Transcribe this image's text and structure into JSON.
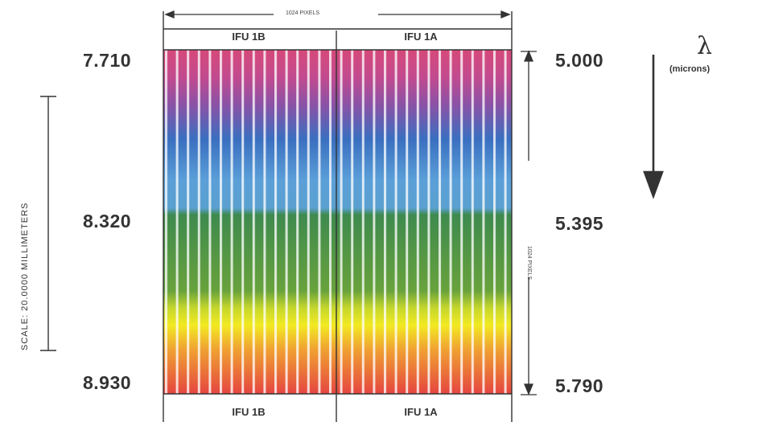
{
  "top_axis": {
    "label": "1024 PIXELS"
  },
  "side_axis": {
    "label": "1024 PIXELS"
  },
  "slices_top": [
    "IFU 1B",
    "IFU 1A"
  ],
  "slices_bottom": [
    "IFU 1B",
    "IFU 1A"
  ],
  "left_values": {
    "top": "7.710",
    "middle": "8.320",
    "bottom": "8.930"
  },
  "right_values": {
    "top": "5.000",
    "middle": "5.395",
    "bottom": "5.790"
  },
  "wavelength": {
    "symbol": "λ",
    "unit": "(microns)"
  },
  "scale": {
    "label": "SCALE:  20.0000  MILLIMETERS"
  },
  "colors": {
    "band_stops": [
      "#d6497a",
      "#8a52a6",
      "#3a6fc0",
      "#5b9fd8",
      "#3e8a4e",
      "#68a23c",
      "#f2ea22",
      "#f0a232",
      "#e54540"
    ],
    "stroke": "#333333"
  }
}
